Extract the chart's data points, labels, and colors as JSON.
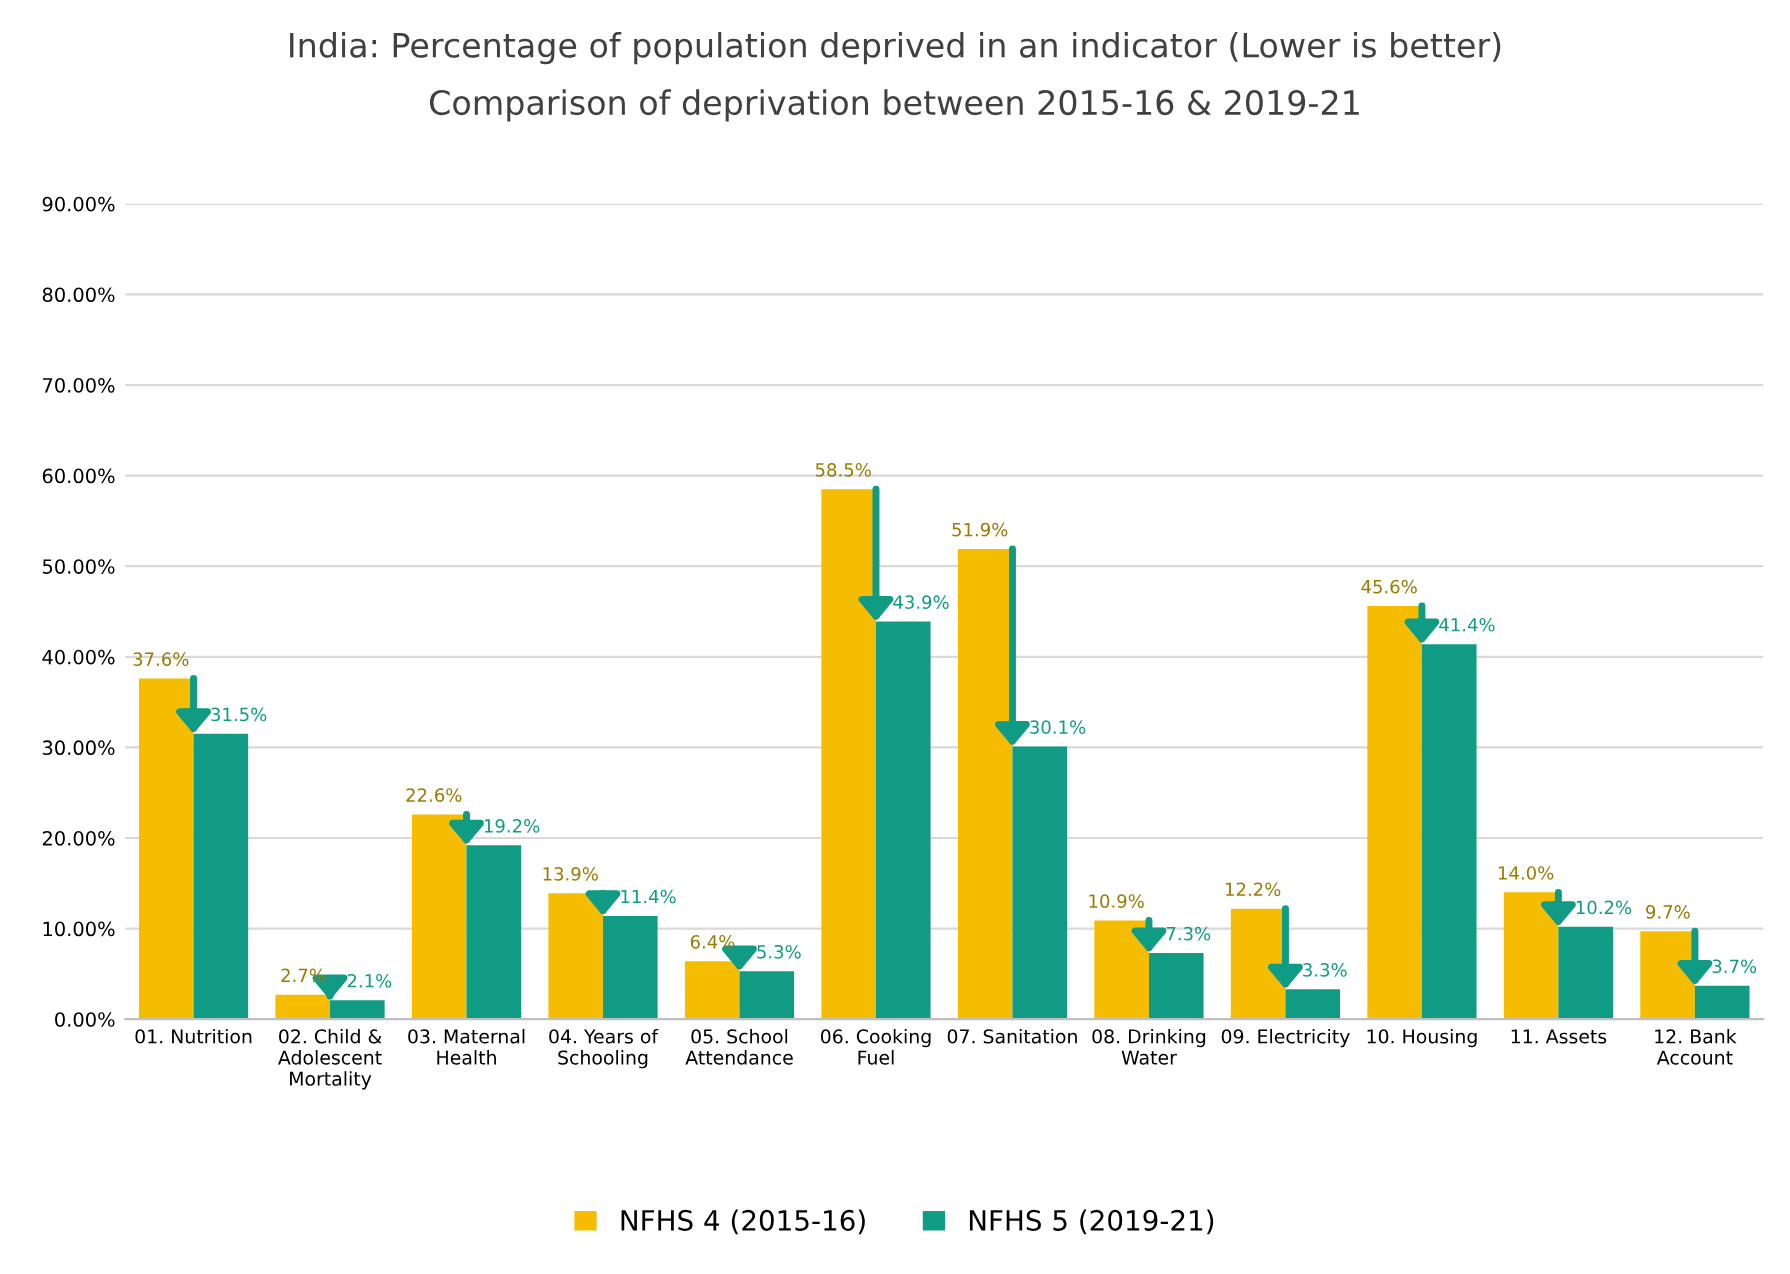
{
  "chart_data": {
    "type": "bar",
    "title": "India: Percentage of population deprived in an indicator (Lower is better)",
    "subtitle": "Comparison of deprivation between 2015-16 & 2019-21",
    "categories": [
      "01. Nutrition",
      "02. Child &\nAdolescent\nMortality",
      "03. Maternal\nHealth",
      "04. Years of\nSchooling",
      "05. School\nAttendance",
      "06. Cooking\nFuel",
      "07. Sanitation",
      "08. Drinking\nWater",
      "09. Electricity",
      "10. Housing",
      "11. Assets",
      "12. Bank\nAccount"
    ],
    "series": [
      {
        "name": "NFHS 4 (2015-16)",
        "color": "#f5bc00",
        "values": [
          37.6,
          2.7,
          22.6,
          13.9,
          6.4,
          58.5,
          51.9,
          10.9,
          12.2,
          45.6,
          14.0,
          9.7
        ],
        "value_labels": [
          "37.6%",
          "2.7%",
          "22.6%",
          "13.9%",
          "6.4%",
          "58.5%",
          "51.9%",
          "10.9%",
          "12.2%",
          "45.6%",
          "14.0%",
          "9.7%"
        ]
      },
      {
        "name": "NFHS 5 (2019-21)",
        "color": "#0f9b84",
        "values": [
          31.5,
          2.1,
          19.2,
          11.4,
          5.3,
          43.9,
          30.1,
          7.3,
          3.3,
          41.4,
          10.2,
          3.7
        ],
        "value_labels": [
          "31.5%",
          "2.1%",
          "19.2%",
          "11.4%",
          "5.3%",
          "43.9%",
          "30.1%",
          "7.3%",
          "3.3%",
          "41.4%",
          "10.2%",
          "3.7%"
        ]
      }
    ],
    "ylim": [
      0,
      90
    ],
    "yticks": [
      {
        "value": 0,
        "label": "0.00%"
      },
      {
        "value": 10,
        "label": "10.00%"
      },
      {
        "value": 20,
        "label": "20.00%"
      },
      {
        "value": 30,
        "label": "30.00%"
      },
      {
        "value": 40,
        "label": "40.00%"
      },
      {
        "value": 50,
        "label": "50.00%"
      },
      {
        "value": 60,
        "label": "60.00%"
      },
      {
        "value": 70,
        "label": "70.00%"
      },
      {
        "value": 80,
        "label": "80.00%"
      },
      {
        "value": 90,
        "label": "90.00%"
      }
    ],
    "grid": "y",
    "legend": "bottom"
  }
}
